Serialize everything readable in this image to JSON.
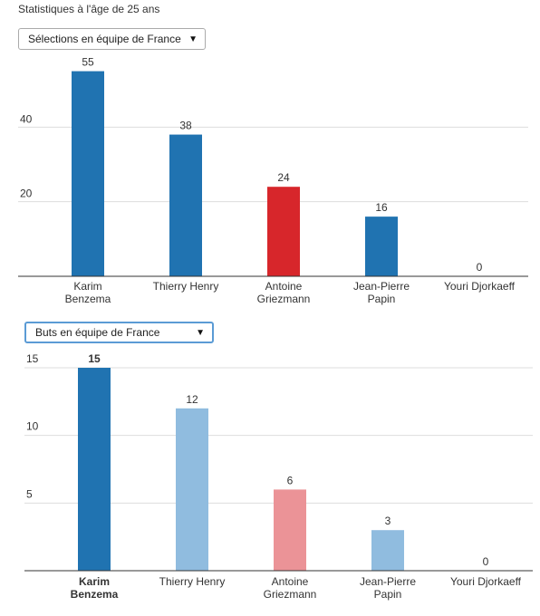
{
  "page": {
    "title": "Statistiques à l'âge de 25 ans"
  },
  "chart_data": [
    {
      "type": "bar",
      "selector_label": "Sélections en équipe de France",
      "categories": [
        [
          "Karim",
          "Benzema"
        ],
        [
          "Thierry Henry"
        ],
        [
          "Antoine",
          "Griezmann"
        ],
        [
          "Jean-Pierre",
          "Papin"
        ],
        [
          "Youri Djorkaeff"
        ]
      ],
      "values": [
        55,
        38,
        24,
        16,
        0
      ],
      "colors": [
        "#2073b1",
        "#2073b1",
        "#d7262b",
        "#2073b1",
        "#2073b1"
      ],
      "bold_category": -1,
      "yticks": [
        20,
        40
      ],
      "ylim": [
        0,
        60
      ],
      "grid": true
    },
    {
      "type": "bar",
      "selector_label": "Buts en équipe de France",
      "categories": [
        [
          "Karim",
          "Benzema"
        ],
        [
          "Thierry Henry"
        ],
        [
          "Antoine",
          "Griezmann"
        ],
        [
          "Jean-Pierre",
          "Papin"
        ],
        [
          "Youri Djorkaeff"
        ]
      ],
      "values": [
        15,
        12,
        6,
        3,
        0
      ],
      "colors": [
        "#2073b1",
        "#90bcdf",
        "#eb9397",
        "#90bcdf",
        "#90bcdf"
      ],
      "bold_category": 0,
      "yticks": [
        5,
        10,
        15
      ],
      "ylim": [
        0,
        15
      ],
      "grid": true
    }
  ]
}
